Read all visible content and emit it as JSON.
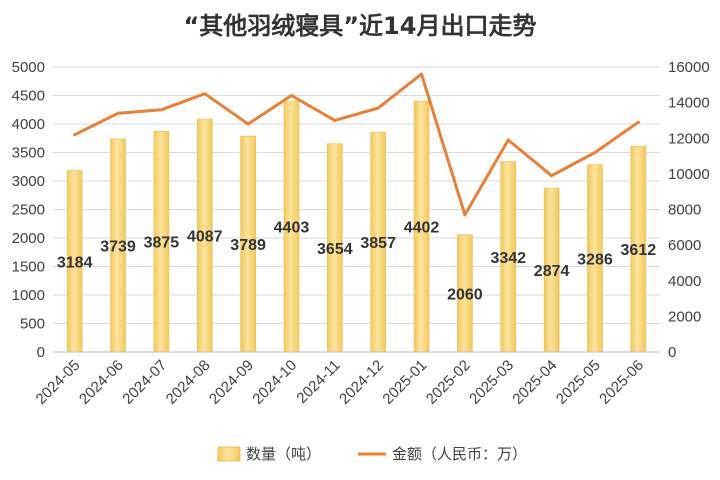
{
  "chart_data": {
    "type": "bar+line",
    "title": "“其他羽绒寝具”近14月出口走势",
    "categories": [
      "2024-05",
      "2024-06",
      "2024-07",
      "2024-08",
      "2024-09",
      "2024-10",
      "2024-11",
      "2024-12",
      "2025-01",
      "2025-02",
      "2025-03",
      "2025-04",
      "2025-05",
      "2025-06"
    ],
    "series": [
      {
        "name": "数量（吨）",
        "type": "bar",
        "axis": "left",
        "color": "#F7D57A",
        "values": [
          3184,
          3739,
          3875,
          4087,
          3789,
          4403,
          3654,
          3857,
          4402,
          2060,
          3342,
          2874,
          3286,
          3612
        ]
      },
      {
        "name": "金额（人民币：万）",
        "type": "line",
        "axis": "right",
        "color": "#E8803A",
        "values": [
          12200,
          13400,
          13600,
          14500,
          12800,
          14400,
          13000,
          13700,
          15600,
          7700,
          11900,
          9900,
          11200,
          12900
        ]
      }
    ],
    "left_axis": {
      "min": 0,
      "max": 5000,
      "step": 500,
      "ticks": [
        "0",
        "500",
        "1000",
        "1500",
        "2000",
        "2500",
        "3000",
        "3500",
        "4000",
        "4500",
        "5000"
      ]
    },
    "right_axis": {
      "min": 0,
      "max": 16000,
      "step": 2000,
      "ticks": [
        "0",
        "2000",
        "4000",
        "6000",
        "8000",
        "10000",
        "12000",
        "14000",
        "16000"
      ]
    },
    "grid": true,
    "legend_position": "bottom"
  }
}
